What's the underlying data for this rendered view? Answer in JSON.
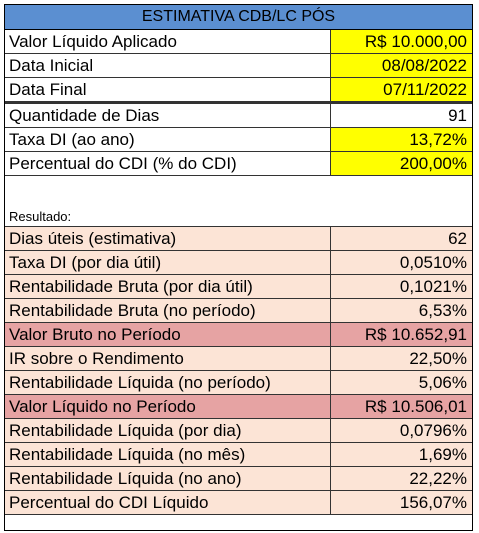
{
  "header": {
    "title": "ESTIMATIVA CDB/LC PÓS"
  },
  "inputs": [
    [
      "Valor Líquido Aplicado",
      "R$ 10.000,00"
    ],
    [
      "Data Inicial",
      "08/08/2022"
    ],
    [
      "Data Final",
      "07/11/2022"
    ],
    [
      "Quantidade de Dias",
      "91"
    ],
    [
      "Taxa DI (ao ano)",
      "13,72%"
    ],
    [
      "Percentual do CDI (% do CDI)",
      "200,00%"
    ]
  ],
  "result_label": "Resultado:",
  "results": [
    [
      "Dias úteis (estimativa)",
      "62"
    ],
    [
      "Taxa DI (por dia útil)",
      "0,0510%"
    ],
    [
      "Rentabilidade Bruta (por dia útil)",
      "0,1021%"
    ],
    [
      "Rentabilidade Bruta (no período)",
      "6,53%"
    ],
    [
      "Valor Bruto no Período",
      "R$ 10.652,91"
    ],
    [
      "IR sobre o Rendimento",
      "22,50%"
    ],
    [
      "Rentabilidade Líquida (no período)",
      "5,06%"
    ],
    [
      "Valor Líquido no Período",
      "R$ 10.506,01"
    ],
    [
      "Rentabilidade Líquida (por dia)",
      "0,0796%"
    ],
    [
      "Rentabilidade Líquida (no mês)",
      "1,69%"
    ],
    [
      "Rentabilidade Líquida (no ano)",
      "22,22%"
    ],
    [
      "Percentual do CDI Líquido",
      "156,07%"
    ]
  ]
}
